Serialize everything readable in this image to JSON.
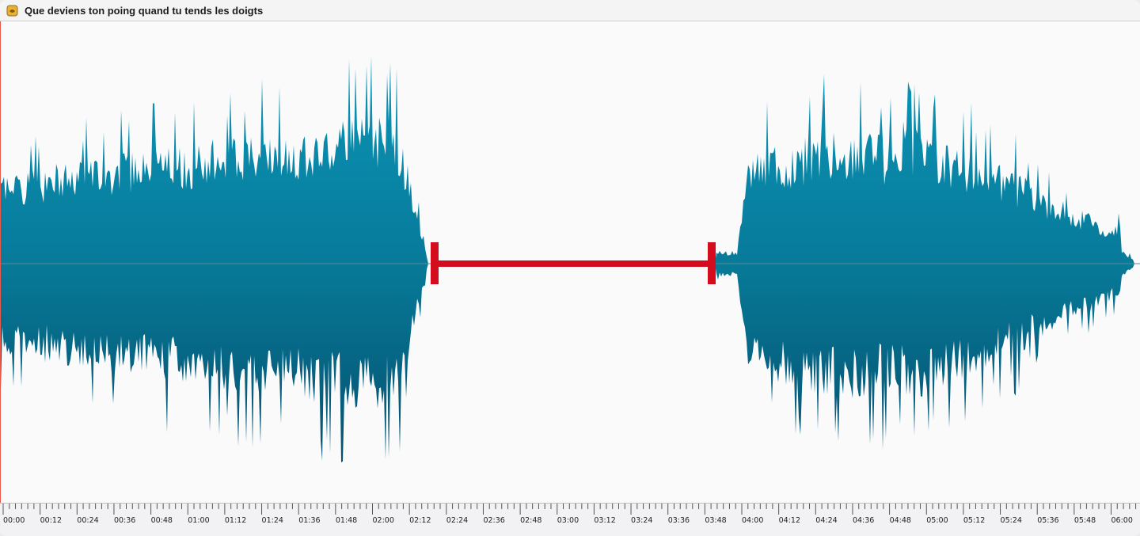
{
  "window": {
    "title": "Que deviens ton poing quand tu tends les doigts",
    "icon": "document-icon"
  },
  "waveform": {
    "color_top": "#0b93b3",
    "color_bottom": "#075575",
    "selection_color": "#d30d1d",
    "selection": {
      "start": "02:18",
      "end": "03:49"
    }
  },
  "ruler": {
    "labels": [
      "00:00",
      "00:12",
      "00:24",
      "00:36",
      "00:48",
      "01:00",
      "01:12",
      "01:24",
      "01:36",
      "01:48",
      "02:00",
      "02:12",
      "02:24",
      "02:36",
      "02:48",
      "03:00",
      "03:12",
      "03:24",
      "03:36",
      "03:48",
      "04:00",
      "04:12",
      "04:24",
      "04:36",
      "04:48",
      "05:00",
      "05:12",
      "05:24",
      "05:36",
      "05:48",
      "06:00"
    ]
  }
}
